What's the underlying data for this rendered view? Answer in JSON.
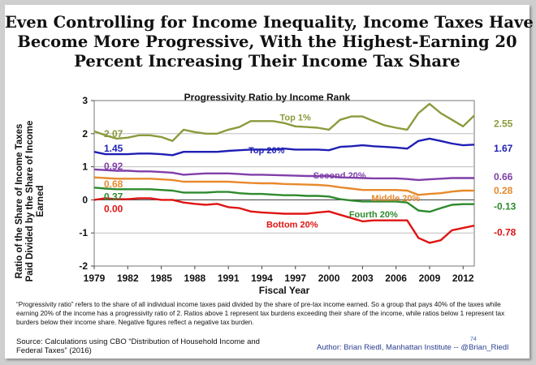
{
  "header": {
    "title_lines": [
      "Even Controlling for Income Inequality, Income Taxes Have",
      "Become More Progressive, With the Highest-Earning 20",
      "Percent Increasing Their Income Tax Share"
    ]
  },
  "chart_data": {
    "type": "line",
    "title": "Progressivity Ratio by Income Rank",
    "ylabel": "Ratio of the Share of Income Taxes Paid Divided by the Share of Income Earned",
    "xlabel": "Fiscal Year",
    "x": [
      1979,
      1980,
      1981,
      1982,
      1983,
      1984,
      1985,
      1986,
      1987,
      1988,
      1989,
      1990,
      1991,
      1992,
      1993,
      1994,
      1995,
      1996,
      1997,
      1998,
      1999,
      2000,
      2001,
      2002,
      2003,
      2004,
      2005,
      2006,
      2007,
      2008,
      2009,
      2010,
      2011,
      2012,
      2013
    ],
    "xticks": [
      "1979",
      "1982",
      "1985",
      "1988",
      "1991",
      "1994",
      "1997",
      "2000",
      "2003",
      "2006",
      "2009",
      "2012"
    ],
    "ylim": [
      -2,
      3
    ],
    "yticks": [
      "-2",
      "-1",
      "0",
      "1",
      "2",
      "3"
    ],
    "grid": true,
    "series": [
      {
        "name": "Top 1%",
        "color": "#8c9a3c",
        "start_label": "2.07",
        "end_label": "2.55",
        "values": [
          2.07,
          1.95,
          1.85,
          1.88,
          1.95,
          1.95,
          1.9,
          1.78,
          2.12,
          2.05,
          2.0,
          2.0,
          2.12,
          2.2,
          2.38,
          2.38,
          2.38,
          2.32,
          2.22,
          2.2,
          2.18,
          2.12,
          2.42,
          2.52,
          2.52,
          2.38,
          2.25,
          2.18,
          2.12,
          2.62,
          2.9,
          2.62,
          2.42,
          2.22,
          2.55
        ]
      },
      {
        "name": "Top 20%",
        "color": "#1f1fb4",
        "start_label": "1.45",
        "end_label": "1.67",
        "values": [
          1.45,
          1.38,
          1.38,
          1.38,
          1.4,
          1.4,
          1.38,
          1.35,
          1.45,
          1.45,
          1.45,
          1.45,
          1.48,
          1.5,
          1.52,
          1.52,
          1.52,
          1.55,
          1.52,
          1.52,
          1.52,
          1.5,
          1.6,
          1.62,
          1.65,
          1.62,
          1.6,
          1.58,
          1.55,
          1.78,
          1.85,
          1.78,
          1.7,
          1.65,
          1.67
        ]
      },
      {
        "name": "Second 20%",
        "color": "#7f3fa8",
        "start_label": "0.92",
        "end_label": "0.66",
        "values": [
          0.92,
          0.9,
          0.88,
          0.88,
          0.86,
          0.86,
          0.84,
          0.82,
          0.76,
          0.78,
          0.8,
          0.8,
          0.8,
          0.78,
          0.76,
          0.76,
          0.75,
          0.74,
          0.73,
          0.72,
          0.72,
          0.72,
          0.68,
          0.67,
          0.66,
          0.65,
          0.65,
          0.65,
          0.63,
          0.6,
          0.62,
          0.64,
          0.66,
          0.66,
          0.66
        ]
      },
      {
        "name": "Middle 20%",
        "color": "#e8892b",
        "start_label": "0.68",
        "end_label": "0.28",
        "values": [
          0.68,
          0.66,
          0.64,
          0.64,
          0.64,
          0.64,
          0.62,
          0.6,
          0.55,
          0.55,
          0.55,
          0.55,
          0.55,
          0.53,
          0.51,
          0.5,
          0.5,
          0.48,
          0.47,
          0.46,
          0.45,
          0.43,
          0.38,
          0.34,
          0.3,
          0.3,
          0.3,
          0.3,
          0.28,
          0.15,
          0.18,
          0.2,
          0.25,
          0.28,
          0.28
        ]
      },
      {
        "name": "Fourth 20%",
        "color": "#2e8a2e",
        "start_label": "0.37",
        "end_label": "-0.13",
        "values": [
          0.37,
          0.34,
          0.32,
          0.32,
          0.32,
          0.32,
          0.3,
          0.28,
          0.22,
          0.22,
          0.22,
          0.24,
          0.24,
          0.2,
          0.18,
          0.18,
          0.16,
          0.14,
          0.14,
          0.12,
          0.12,
          0.1,
          0.02,
          -0.02,
          -0.05,
          -0.05,
          -0.05,
          -0.05,
          -0.08,
          -0.32,
          -0.36,
          -0.25,
          -0.15,
          -0.13,
          -0.13
        ]
      },
      {
        "name": "Bottom 20%",
        "color": "#e01414",
        "start_label": "0.00",
        "end_label": "-0.78",
        "values": [
          0.0,
          0.05,
          0.02,
          0.02,
          0.05,
          0.05,
          0.0,
          0.0,
          -0.08,
          -0.12,
          -0.15,
          -0.12,
          -0.22,
          -0.25,
          -0.35,
          -0.38,
          -0.4,
          -0.42,
          -0.42,
          -0.42,
          -0.38,
          -0.35,
          -0.45,
          -0.55,
          -0.65,
          -0.62,
          -0.62,
          -0.62,
          -0.62,
          -1.15,
          -1.3,
          -1.22,
          -0.92,
          -0.85,
          -0.78
        ]
      }
    ]
  },
  "footnote": "“Progressivity ratio” refers to the share of all individual income taxes paid divided by the share of pre-tax income earned. So a group that pays 40% of the taxes while earning 20% of the income has a progressivity ratio of 2. Ratios above 1 represent tax burdens exceeding their share of the income, while ratios below 1 represent tax burders below their income share. Negative figures reflect a negative tax burden.",
  "source": "Source: Calculations using CBO “Distribution of Household Income and Federal Taxes” (2016)",
  "page_number": "74",
  "author": "Author: Brian Riedl, Manhattan Institute -- @Brian_Riedl"
}
